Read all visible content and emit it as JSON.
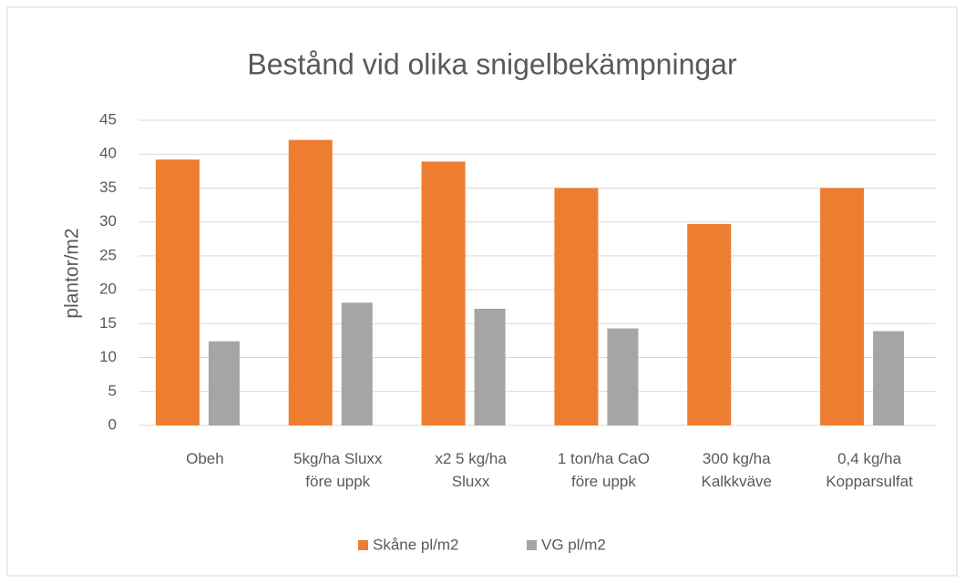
{
  "chart_data": {
    "type": "bar",
    "title": "Bestånd vid olika snigelbekämpningar",
    "y_label": "plantor/m2",
    "categories": [
      "Obeh",
      "5kg/ha Sluxx\nföre uppk",
      "x2 5 kg/ha\nSluxx",
      "1 ton/ha CaO\nföre uppk",
      "300 kg/ha\nKalkkväve",
      "0,4 kg/ha\nKopparsulfat"
    ],
    "series": [
      {
        "name": "Skåne pl/m2",
        "color": "#ed7d31",
        "values": [
          39.2,
          42.1,
          38.9,
          35.0,
          29.7,
          35.0
        ]
      },
      {
        "name": "VG pl/m2",
        "color": "#a5a5a5",
        "values": [
          12.4,
          18.1,
          17.2,
          14.3,
          null,
          13.9
        ]
      }
    ],
    "ylim": [
      0,
      45
    ],
    "yticks": [
      0,
      5,
      10,
      15,
      20,
      25,
      30,
      35,
      40,
      45
    ],
    "grid": true,
    "legend": "bottom"
  }
}
